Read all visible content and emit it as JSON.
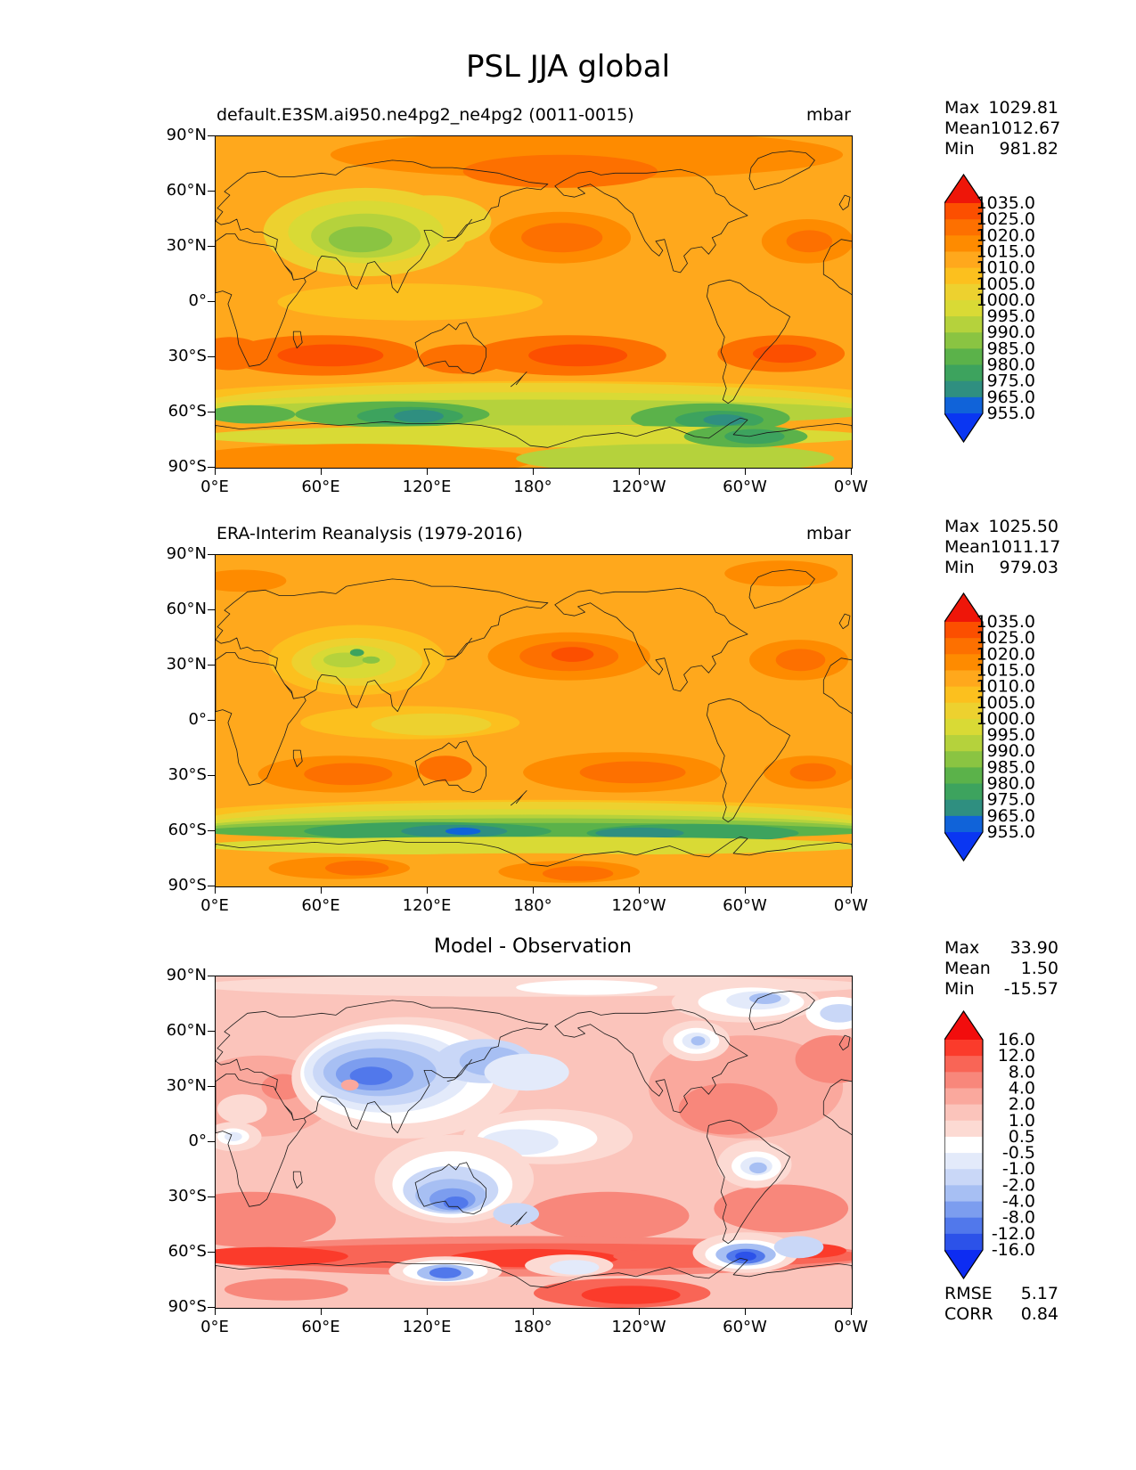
{
  "title": "PSL JJA global",
  "axis": {
    "lat_ticks": [
      "90°N",
      "60°N",
      "30°N",
      "0°",
      "30°S",
      "60°S",
      "90°S"
    ],
    "lon_ticks": [
      "0°E",
      "60°E",
      "120°E",
      "180°",
      "120°W",
      "60°W",
      "0°W"
    ]
  },
  "panels": [
    {
      "subtitle": "default.E3SM.ai950.ne4pg2_ne4pg2 (0011-0015)",
      "units": "mbar",
      "stats": [
        [
          "Max",
          "1029.81"
        ],
        [
          "Mean",
          "1012.67"
        ],
        [
          "Min",
          "981.82"
        ]
      ],
      "colorbar": {
        "labels": [
          "1035.0",
          "1025.0",
          "1020.0",
          "1015.0",
          "1010.0",
          "1005.0",
          "1000.0",
          "995.0",
          "990.0",
          "985.0",
          "980.0",
          "975.0",
          "965.0",
          "955.0"
        ],
        "colors": {
          "top": "#ee1609",
          "bands": [
            "#fc4f00",
            "#fd7000",
            "#fe8b00",
            "#ffa81c",
            "#fcc01e",
            "#edd12f",
            "#d9da35",
            "#b5d23c",
            "#8ac442",
            "#5bb24a",
            "#3da35e",
            "#2f8f80",
            "#1063d9"
          ],
          "bottom": "#0a36f2"
        }
      }
    },
    {
      "subtitle": "ERA-Interim Reanalysis (1979-2016)",
      "units": "mbar",
      "stats": [
        [
          "Max",
          "1025.50"
        ],
        [
          "Mean",
          "1011.17"
        ],
        [
          "Min",
          "979.03"
        ]
      ],
      "colorbar": {
        "labels": [
          "1035.0",
          "1025.0",
          "1020.0",
          "1015.0",
          "1010.0",
          "1005.0",
          "1000.0",
          "995.0",
          "990.0",
          "985.0",
          "980.0",
          "975.0",
          "965.0",
          "955.0"
        ],
        "colors": {
          "top": "#ee1609",
          "bands": [
            "#fc4f00",
            "#fd7000",
            "#fe8b00",
            "#ffa81c",
            "#fcc01e",
            "#edd12f",
            "#d9da35",
            "#b5d23c",
            "#8ac442",
            "#5bb24a",
            "#3da35e",
            "#2f8f80",
            "#1063d9"
          ],
          "bottom": "#0a36f2"
        }
      }
    },
    {
      "subtitle": "Model - Observation",
      "units": "",
      "stats": [
        [
          "Max",
          "33.90"
        ],
        [
          "Mean",
          "1.50"
        ],
        [
          "Min",
          "-15.57"
        ]
      ],
      "metrics": [
        [
          "RMSE",
          "5.17"
        ],
        [
          "CORR",
          "0.84"
        ]
      ],
      "colorbar": {
        "labels": [
          "16.0",
          "12.0",
          "8.0",
          "4.0",
          "2.0",
          "1.0",
          "0.5",
          "-0.5",
          "-1.0",
          "-2.0",
          "-4.0",
          "-8.0",
          "-12.0",
          "-16.0"
        ],
        "colors": {
          "top": "#f20d0d",
          "bands": [
            "#fb3b2b",
            "#f96556",
            "#f8877b",
            "#faa89d",
            "#fbc4bb",
            "#fcdad3",
            "#ffffff",
            "#e3eafa",
            "#c9d7f7",
            "#a7bff3",
            "#7c9def",
            "#5178eb",
            "#2c52e9"
          ],
          "bottom": "#0d2cf2"
        }
      }
    }
  ],
  "chart_data": [
    {
      "type": "heatmap",
      "title": "default.E3SM.ai950.ne4pg2_ne4pg2 (0011-0015)",
      "variable": "PSL",
      "season": "JJA",
      "region": "global",
      "units": "mbar",
      "projection": "equirectangular 0E-360E",
      "levels": [
        955,
        965,
        975,
        980,
        985,
        990,
        995,
        1000,
        1005,
        1010,
        1015,
        1020,
        1025,
        1035
      ],
      "stats": {
        "max": 1029.81,
        "mean": 1012.67,
        "min": 981.82
      },
      "x_axis": {
        "ticks": [
          "0°E",
          "60°E",
          "120°E",
          "180°",
          "120°W",
          "60°W",
          "0°W"
        ]
      },
      "y_axis": {
        "ticks": [
          "90°N",
          "60°N",
          "30°N",
          "0°",
          "30°S",
          "60°S",
          "90°S"
        ]
      }
    },
    {
      "type": "heatmap",
      "title": "ERA-Interim Reanalysis (1979-2016)",
      "variable": "PSL",
      "season": "JJA",
      "region": "global",
      "units": "mbar",
      "projection": "equirectangular 0E-360E",
      "levels": [
        955,
        965,
        975,
        980,
        985,
        990,
        995,
        1000,
        1005,
        1010,
        1015,
        1020,
        1025,
        1035
      ],
      "stats": {
        "max": 1025.5,
        "mean": 1011.17,
        "min": 979.03
      },
      "x_axis": {
        "ticks": [
          "0°E",
          "60°E",
          "120°E",
          "180°",
          "120°W",
          "60°W",
          "0°W"
        ]
      },
      "y_axis": {
        "ticks": [
          "90°N",
          "60°N",
          "30°N",
          "0°",
          "30°S",
          "60°S",
          "90°S"
        ]
      }
    },
    {
      "type": "heatmap",
      "title": "Model - Observation",
      "variable": "PSL difference",
      "season": "JJA",
      "region": "global",
      "units": "mbar",
      "projection": "equirectangular 0E-360E",
      "levels": [
        -16,
        -12,
        -8,
        -4,
        -2,
        -1,
        -0.5,
        0.5,
        1,
        2,
        4,
        8,
        12,
        16
      ],
      "stats": {
        "max": 33.9,
        "mean": 1.5,
        "min": -15.57,
        "rmse": 5.17,
        "corr": 0.84
      },
      "x_axis": {
        "ticks": [
          "0°E",
          "60°E",
          "120°E",
          "180°",
          "120°W",
          "60°W",
          "0°W"
        ]
      },
      "y_axis": {
        "ticks": [
          "90°N",
          "60°N",
          "30°N",
          "0°",
          "30°S",
          "60°S",
          "90°S"
        ]
      }
    }
  ]
}
